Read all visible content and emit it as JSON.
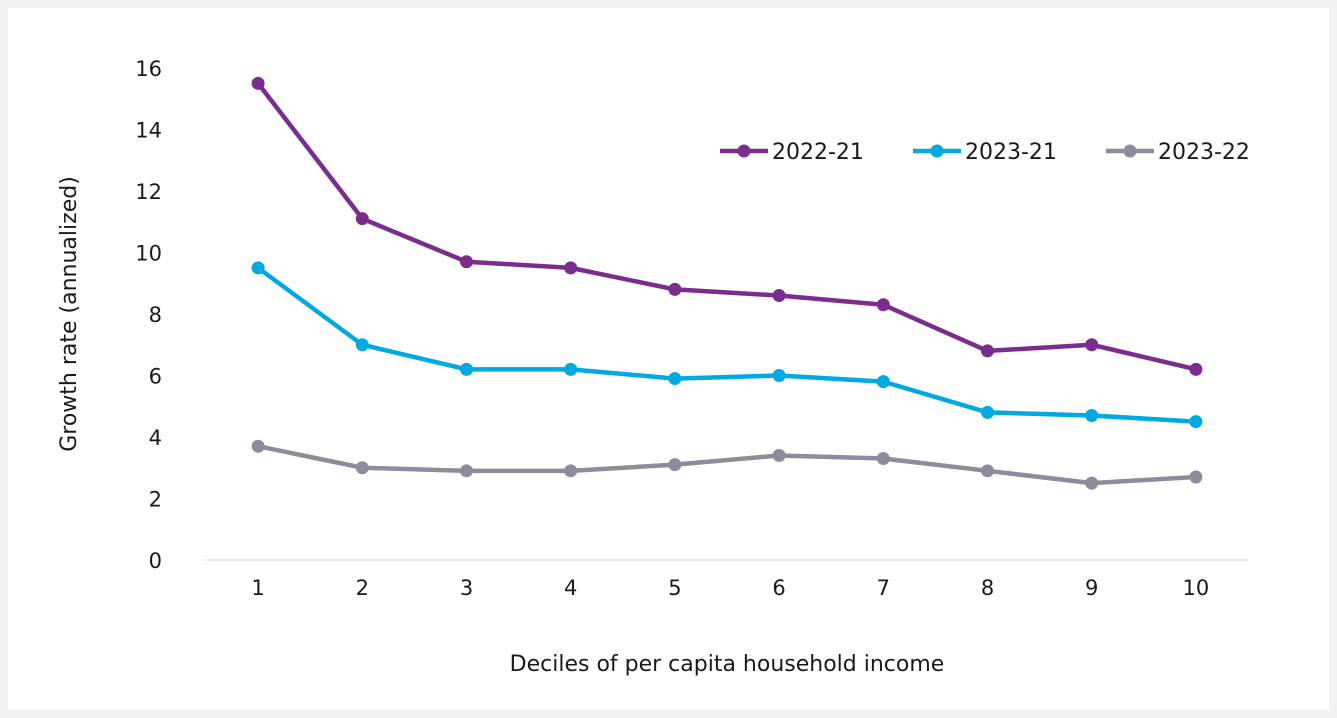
{
  "chart_data": {
    "type": "line",
    "title": "",
    "xlabel": "Deciles of per capita household income",
    "ylabel": "Growth rate (annualized)",
    "categories": [
      "1",
      "2",
      "3",
      "4",
      "5",
      "6",
      "7",
      "8",
      "9",
      "10"
    ],
    "y_ticks": [
      "0",
      "2",
      "4",
      "6",
      "8",
      "10",
      "12",
      "14",
      "16"
    ],
    "ylim": [
      0,
      16
    ],
    "grid": false,
    "legend_position": "top-right",
    "series": [
      {
        "name": "2022-21",
        "color": "#7b2d8e",
        "values": [
          15.5,
          11.1,
          9.7,
          9.5,
          8.8,
          8.6,
          8.3,
          6.8,
          7.0,
          6.2
        ]
      },
      {
        "name": "2023-21",
        "color": "#00a9e0",
        "values": [
          9.5,
          7.0,
          6.2,
          6.2,
          5.9,
          6.0,
          5.8,
          4.8,
          4.7,
          4.5
        ]
      },
      {
        "name": "2023-22",
        "color": "#8c8c9a",
        "values": [
          3.7,
          3.0,
          2.9,
          2.9,
          3.1,
          3.4,
          3.3,
          2.9,
          2.5,
          2.7
        ]
      }
    ]
  }
}
